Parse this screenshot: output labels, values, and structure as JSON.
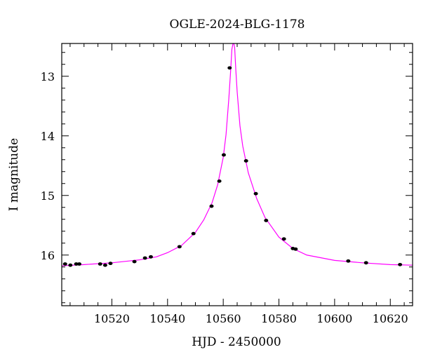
{
  "chart_data": {
    "type": "scatter",
    "title": "OGLE-2024-BLG-1178",
    "xlabel": "HJD - 2450000",
    "ylabel": "I magnitude",
    "xlim": [
      10502,
      10628
    ],
    "ylim": [
      16.85,
      12.45
    ],
    "y_inverted": true,
    "grid": false,
    "legend": "none",
    "x_ticks": [
      10520,
      10540,
      10560,
      10580,
      10600,
      10620
    ],
    "x_tick_labels": [
      "10520",
      "10540",
      "10560",
      "10580",
      "10600",
      "10620"
    ],
    "y_ticks": [
      13,
      14,
      15,
      16
    ],
    "y_tick_labels": [
      "13",
      "14",
      "15",
      "16"
    ],
    "colors": {
      "model_line": "#ff00ff",
      "points": "#000000"
    },
    "series": [
      {
        "type": "scatter",
        "x": [
          10503.2,
          10505.1,
          10507.2,
          10508.3,
          10515.8,
          10517.6,
          10519.5,
          10528.1,
          10531.9,
          10534.0,
          10544.3,
          10549.3,
          10555.8,
          10558.6,
          10560.2,
          10562.3,
          10568.2,
          10571.7,
          10575.4,
          10581.8,
          10585.0,
          10586.0,
          10604.9,
          10611.3,
          10623.5
        ],
        "y": [
          16.15,
          16.17,
          16.15,
          16.15,
          16.15,
          16.17,
          16.14,
          16.11,
          16.05,
          16.03,
          15.86,
          15.64,
          15.18,
          14.76,
          14.32,
          12.86,
          14.42,
          14.97,
          15.42,
          15.73,
          15.89,
          15.9,
          16.1,
          16.13,
          16.16
        ]
      },
      {
        "type": "line",
        "x": [
          10502,
          10510,
          10520,
          10530,
          10536,
          10540,
          10545,
          10550,
          10553,
          10556,
          10558,
          10560,
          10561,
          10562,
          10562.6,
          10563.1,
          10563.5,
          10563.8,
          10564.1,
          10564.5,
          10565,
          10566,
          10567,
          10569,
          10572,
          10575,
          10580,
          10585,
          10590,
          10600,
          10610,
          10620,
          10628
        ],
        "y": [
          16.18,
          16.16,
          16.13,
          16.08,
          16.03,
          15.96,
          15.84,
          15.62,
          15.41,
          15.12,
          14.82,
          14.36,
          13.98,
          13.38,
          12.95,
          12.55,
          12.45,
          12.45,
          12.52,
          12.88,
          13.26,
          13.83,
          14.17,
          14.62,
          15.05,
          15.37,
          15.7,
          15.89,
          16.0,
          16.09,
          16.13,
          16.16,
          16.17
        ]
      }
    ]
  }
}
